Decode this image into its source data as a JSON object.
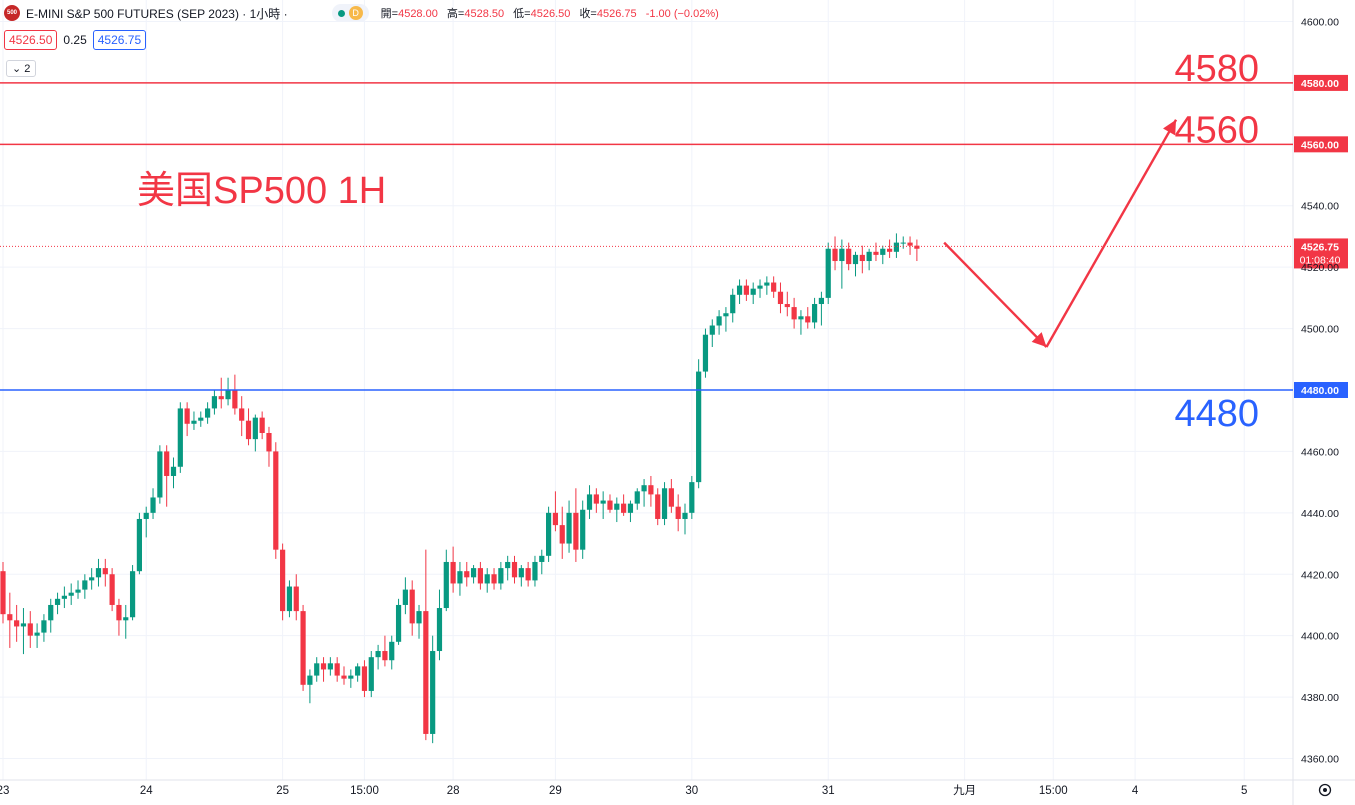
{
  "header": {
    "logo_text": "500",
    "symbol_title": "E-MINI S&P 500 FUTURES (SEP 2023) · 1小時 ·",
    "d_badge": "D",
    "ohlc": {
      "open_label": "開=",
      "open": "4528.00",
      "high_label": "高=",
      "high": "4528.50",
      "low_label": "低=",
      "low": "4526.50",
      "close_label": "收=",
      "close": "4526.75",
      "change": "-1.00 (−0.02%)"
    },
    "bid": "4526.50",
    "spread": "0.25",
    "ask": "4526.75",
    "collapse_label": "⌄ 2"
  },
  "colors": {
    "up": "#089981",
    "down": "#f23645",
    "resistance": "#f23645",
    "support": "#2962ff",
    "annotation": "#f23645"
  },
  "chart_data": {
    "type": "candlestick",
    "title": "美国SP500 1H",
    "ylim": [
      4353,
      4607
    ],
    "y_ticks": [
      "4360.00",
      "4380.00",
      "4400.00",
      "4420.00",
      "4440.00",
      "4460.00",
      "4480.00",
      "4500.00",
      "4520.00",
      "4540.00",
      "4560.00",
      "4580.00",
      "4600.00"
    ],
    "x_labels": [
      {
        "label": "23",
        "i": 0
      },
      {
        "label": "24",
        "i": 21
      },
      {
        "label": "25",
        "i": 41
      },
      {
        "label": "15:00",
        "i": 53
      },
      {
        "label": "28",
        "i": 66
      },
      {
        "label": "29",
        "i": 81
      },
      {
        "label": "30",
        "i": 101
      },
      {
        "label": "31",
        "i": 121
      },
      {
        "label": "九月",
        "i": 141
      },
      {
        "label": "15:00",
        "i": 154
      },
      {
        "label": "4",
        "i": 166
      },
      {
        "label": "5",
        "i": 182
      }
    ],
    "ohlc": [
      [
        4421,
        4424,
        4404,
        4407
      ],
      [
        4407,
        4414,
        4396,
        4405
      ],
      [
        4405,
        4410,
        4398,
        4403
      ],
      [
        4403,
        4409,
        4394,
        4404
      ],
      [
        4404,
        4408,
        4396,
        4400
      ],
      [
        4400,
        4404,
        4396,
        4401
      ],
      [
        4401,
        4407,
        4398,
        4405
      ],
      [
        4405,
        4412,
        4401,
        4410
      ],
      [
        4410,
        4414,
        4407,
        4412
      ],
      [
        4412,
        4416,
        4409,
        4413
      ],
      [
        4413,
        4417,
        4410,
        4414
      ],
      [
        4414,
        4418,
        4412,
        4415
      ],
      [
        4415,
        4420,
        4412,
        4418
      ],
      [
        4418,
        4422,
        4415,
        4419
      ],
      [
        4419,
        4425,
        4416,
        4422
      ],
      [
        4422,
        4425,
        4416,
        4420
      ],
      [
        4420,
        4422,
        4408,
        4410
      ],
      [
        4410,
        4412,
        4400,
        4405
      ],
      [
        4405,
        4410,
        4399,
        4406
      ],
      [
        4406,
        4423,
        4405,
        4421
      ],
      [
        4421,
        4440,
        4420,
        4438
      ],
      [
        4438,
        4442,
        4432,
        4440
      ],
      [
        4440,
        4448,
        4438,
        4445
      ],
      [
        4445,
        4462,
        4443,
        4460
      ],
      [
        4460,
        4462,
        4442,
        4452
      ],
      [
        4452,
        4458,
        4448,
        4455
      ],
      [
        4455,
        4476,
        4453,
        4474
      ],
      [
        4474,
        4476,
        4465,
        4469
      ],
      [
        4469,
        4473,
        4467,
        4470
      ],
      [
        4470,
        4473,
        4468,
        4471
      ],
      [
        4471,
        4476,
        4469,
        4474
      ],
      [
        4474,
        4480,
        4472,
        4478
      ],
      [
        4478,
        4484,
        4474,
        4477
      ],
      [
        4477,
        4484,
        4475,
        4480
      ],
      [
        4480,
        4485,
        4472,
        4474
      ],
      [
        4474,
        4478,
        4465,
        4470
      ],
      [
        4470,
        4474,
        4462,
        4464
      ],
      [
        4464,
        4472,
        4460,
        4471
      ],
      [
        4471,
        4473,
        4464,
        4466
      ],
      [
        4466,
        4468,
        4455,
        4460
      ],
      [
        4460,
        4463,
        4425,
        4428
      ],
      [
        4428,
        4430,
        4405,
        4408
      ],
      [
        4408,
        4418,
        4406,
        4416
      ],
      [
        4416,
        4420,
        4405,
        4408
      ],
      [
        4408,
        4410,
        4382,
        4384
      ],
      [
        4384,
        4389,
        4378,
        4387
      ],
      [
        4387,
        4393,
        4385,
        4391
      ],
      [
        4391,
        4393,
        4385,
        4389
      ],
      [
        4389,
        4393,
        4387,
        4391
      ],
      [
        4391,
        4393,
        4385,
        4387
      ],
      [
        4387,
        4390,
        4384,
        4386
      ],
      [
        4386,
        4389,
        4383,
        4387
      ],
      [
        4387,
        4391,
        4385,
        4390
      ],
      [
        4390,
        4392,
        4380,
        4382
      ],
      [
        4382,
        4395,
        4380,
        4393
      ],
      [
        4393,
        4397,
        4389,
        4395
      ],
      [
        4395,
        4400,
        4390,
        4392
      ],
      [
        4392,
        4400,
        4389,
        4398
      ],
      [
        4398,
        4412,
        4397,
        4410
      ],
      [
        4410,
        4419,
        4407,
        4415
      ],
      [
        4415,
        4418,
        4400,
        4404
      ],
      [
        4404,
        4410,
        4399,
        4408
      ],
      [
        4408,
        4428,
        4366,
        4368
      ],
      [
        4368,
        4400,
        4365,
        4395
      ],
      [
        4395,
        4415,
        4392,
        4409
      ],
      [
        4409,
        4428,
        4408,
        4424
      ],
      [
        4424,
        4429,
        4414,
        4417
      ],
      [
        4417,
        4424,
        4413,
        4421
      ],
      [
        4421,
        4424,
        4416,
        4419
      ],
      [
        4419,
        4423,
        4417,
        4422
      ],
      [
        4422,
        4424,
        4415,
        4417
      ],
      [
        4417,
        4422,
        4414,
        4420
      ],
      [
        4420,
        4422,
        4415,
        4417
      ],
      [
        4417,
        4424,
        4415,
        4422
      ],
      [
        4422,
        4426,
        4418,
        4424
      ],
      [
        4424,
        4426,
        4417,
        4419
      ],
      [
        4419,
        4423,
        4416,
        4422
      ],
      [
        4422,
        4424,
        4416,
        4418
      ],
      [
        4418,
        4426,
        4416,
        4424
      ],
      [
        4424,
        4428,
        4420,
        4426
      ],
      [
        4426,
        4442,
        4424,
        4440
      ],
      [
        4440,
        4447,
        4434,
        4436
      ],
      [
        4436,
        4442,
        4425,
        4430
      ],
      [
        4430,
        4444,
        4427,
        4440
      ],
      [
        4440,
        4448,
        4424,
        4428
      ],
      [
        4428,
        4444,
        4425,
        4441
      ],
      [
        4441,
        4449,
        4438,
        4446
      ],
      [
        4446,
        4448,
        4440,
        4443
      ],
      [
        4443,
        4447,
        4438,
        4444
      ],
      [
        4444,
        4446,
        4440,
        4441
      ],
      [
        4441,
        4445,
        4437,
        4443
      ],
      [
        4443,
        4446,
        4439,
        4440
      ],
      [
        4440,
        4444,
        4437,
        4443
      ],
      [
        4443,
        4448,
        4441,
        4447
      ],
      [
        4447,
        4451,
        4442,
        4449
      ],
      [
        4449,
        4452,
        4442,
        4446
      ],
      [
        4446,
        4448,
        4436,
        4438
      ],
      [
        4438,
        4450,
        4436,
        4448
      ],
      [
        4448,
        4451,
        4440,
        4442
      ],
      [
        4442,
        4446,
        4434,
        4438
      ],
      [
        4438,
        4443,
        4433,
        4440
      ],
      [
        4440,
        4452,
        4438,
        4450
      ],
      [
        4450,
        4490,
        4448,
        4486
      ],
      [
        4486,
        4500,
        4484,
        4498
      ],
      [
        4498,
        4503,
        4494,
        4501
      ],
      [
        4501,
        4506,
        4498,
        4504
      ],
      [
        4504,
        4507,
        4499,
        4505
      ],
      [
        4505,
        4513,
        4502,
        4511
      ],
      [
        4511,
        4516,
        4508,
        4514
      ],
      [
        4514,
        4516,
        4509,
        4511
      ],
      [
        4511,
        4515,
        4508,
        4513
      ],
      [
        4513,
        4516,
        4510,
        4514
      ],
      [
        4514,
        4517,
        4511,
        4515
      ],
      [
        4515,
        4517,
        4510,
        4512
      ],
      [
        4512,
        4515,
        4505,
        4508
      ],
      [
        4508,
        4512,
        4504,
        4507
      ],
      [
        4507,
        4510,
        4500,
        4503
      ],
      [
        4503,
        4506,
        4498,
        4504
      ],
      [
        4504,
        4507,
        4500,
        4502
      ],
      [
        4502,
        4510,
        4500,
        4508
      ],
      [
        4508,
        4512,
        4501,
        4510
      ],
      [
        4510,
        4528,
        4508,
        4526
      ],
      [
        4526,
        4530,
        4519,
        4522
      ],
      [
        4522,
        4529,
        4513,
        4526
      ],
      [
        4526,
        4528,
        4519,
        4521
      ],
      [
        4521,
        4525,
        4517,
        4524
      ],
      [
        4524,
        4527,
        4518,
        4522
      ],
      [
        4522,
        4526,
        4519,
        4525
      ],
      [
        4525,
        4528,
        4522,
        4524
      ],
      [
        4524,
        4527,
        4521,
        4526
      ],
      [
        4526,
        4529,
        4523,
        4525
      ],
      [
        4525,
        4531,
        4523,
        4528
      ],
      [
        4528,
        4530,
        4526,
        4528
      ],
      [
        4528,
        4530,
        4524,
        4527
      ],
      [
        4527,
        4529,
        4522,
        4526
      ]
    ],
    "horizontal_levels": [
      {
        "price": 4580,
        "label": "4580",
        "axis_label": "4580.00",
        "color": "#f23645"
      },
      {
        "price": 4560,
        "label": "4560",
        "axis_label": "4560.00",
        "color": "#f23645"
      },
      {
        "price": 4480,
        "label": "4480",
        "axis_label": "4480.00",
        "color": "#2962ff"
      }
    ],
    "last_price": {
      "value": 4526.75,
      "label": "4526.75",
      "countdown": "01:08:40"
    },
    "forecast_path": [
      {
        "i": 138,
        "price": 4528
      },
      {
        "i": 153,
        "price": 4494
      },
      {
        "i": 172,
        "price": 4568
      }
    ]
  }
}
